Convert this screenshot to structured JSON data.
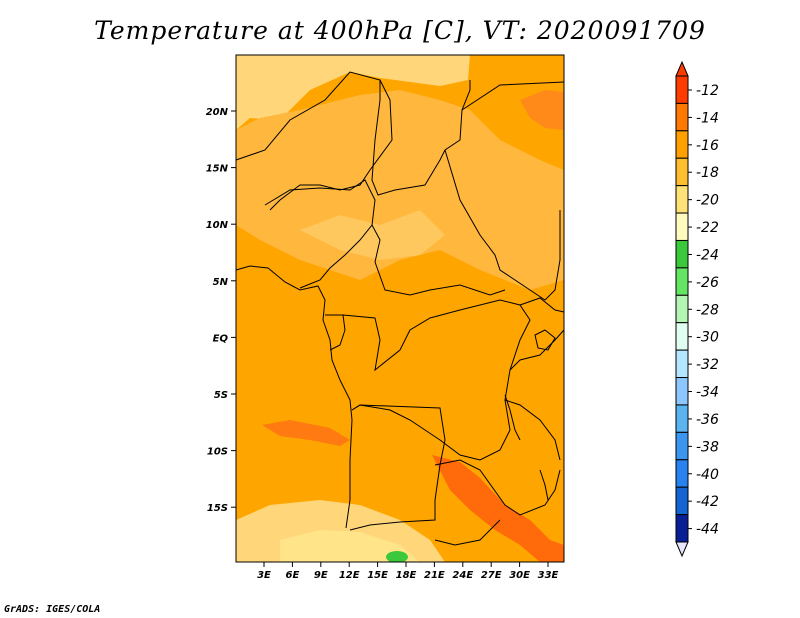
{
  "title": "Temperature at 400hPa [C], VT: 2020091709",
  "credit": "GrADS: IGES/COLA",
  "lat_ticks": [
    "20N",
    "15N",
    "10N",
    "5N",
    "EQ",
    "5S",
    "10S",
    "15S"
  ],
  "lon_ticks": [
    "3E",
    "6E",
    "9E",
    "12E",
    "15E",
    "18E",
    "21E",
    "24E",
    "27E",
    "30E",
    "33E"
  ],
  "colorbar": {
    "labels": [
      "-12",
      "-14",
      "-16",
      "-18",
      "-20",
      "-22",
      "-24",
      "-26",
      "-28",
      "-30",
      "-32",
      "-34",
      "-36",
      "-38",
      "-40",
      "-42",
      "-44"
    ],
    "colors": [
      "#ff3c00",
      "#ff7800",
      "#ffa000",
      "#ffbe2d",
      "#ffe178",
      "#fffabe",
      "#3cc83c",
      "#64e664",
      "#b4f5b4",
      "#e1fff0",
      "#b4e6ff",
      "#8cc8ff",
      "#5ab4f0",
      "#3c96f0",
      "#2882f0",
      "#1464d2",
      "#0a1e96"
    ],
    "arrow_top_color": "#ff3c00",
    "arrow_bottom_color": "#e6e6ff"
  },
  "map": {
    "background_color": "#ffa500",
    "regions": [
      {
        "name": "sahara-north-pale",
        "color": "#ffd77a"
      },
      {
        "name": "chad-sudan-band",
        "color": "#ffb73d"
      },
      {
        "name": "ne-corner-deep",
        "color": "#ff8a1a"
      },
      {
        "name": "angola-tongue-deep",
        "color": "#ff7a10"
      },
      {
        "name": "zambia-band-deep",
        "color": "#ff6a0a"
      },
      {
        "name": "south-pale",
        "color": "#ffd77a"
      },
      {
        "name": "south-yellow",
        "color": "#ffe48a"
      },
      {
        "name": "green-spot",
        "color": "#3cc83c"
      }
    ]
  }
}
